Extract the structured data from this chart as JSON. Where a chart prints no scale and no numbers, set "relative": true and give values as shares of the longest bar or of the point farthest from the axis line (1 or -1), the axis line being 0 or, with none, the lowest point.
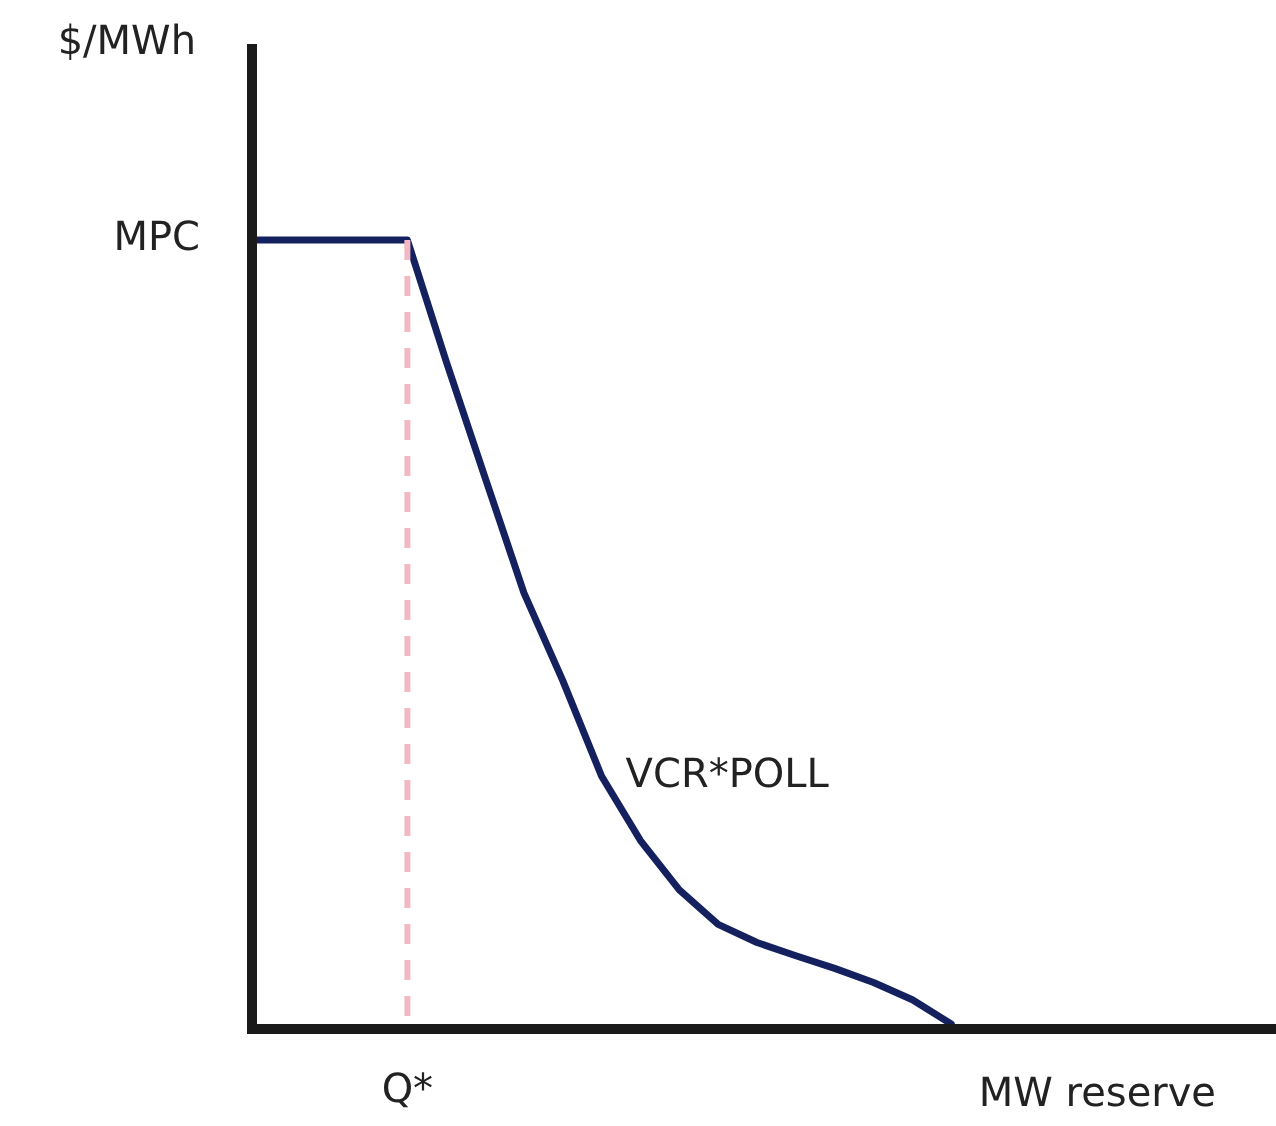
{
  "chart_data": {
    "type": "line",
    "relative": true,
    "xlabel": "MW reserve",
    "ylabel": "$/MWh",
    "marker": "none",
    "line_style": "solid",
    "categories": [
      null,
      null,
      null,
      null,
      null,
      null,
      null,
      null,
      null,
      null,
      null,
      null,
      null,
      null,
      null,
      null,
      null,
      null,
      null,
      null,
      null,
      null,
      null,
      null,
      null,
      null,
      null
    ],
    "annotations": [
      "MPC"
    ],
    "ref_lines": [
      {
        "axis": "x",
        "label": "Q*",
        "color": "#f2b8c4",
        "line_style": "dashed"
      }
    ],
    "series": [
      {
        "name": "VCR*POLL",
        "color": "#14215e",
        "values": [
          1,
          1,
          1,
          1,
          1,
          0.845,
          0.697,
          0.55,
          0.438,
          0.316,
          0.234,
          0.171,
          0.127,
          0.104,
          0.087,
          0.071,
          0.053,
          0.031,
          0,
          null,
          null,
          null,
          null,
          null,
          null,
          null,
          null
        ]
      }
    ]
  }
}
